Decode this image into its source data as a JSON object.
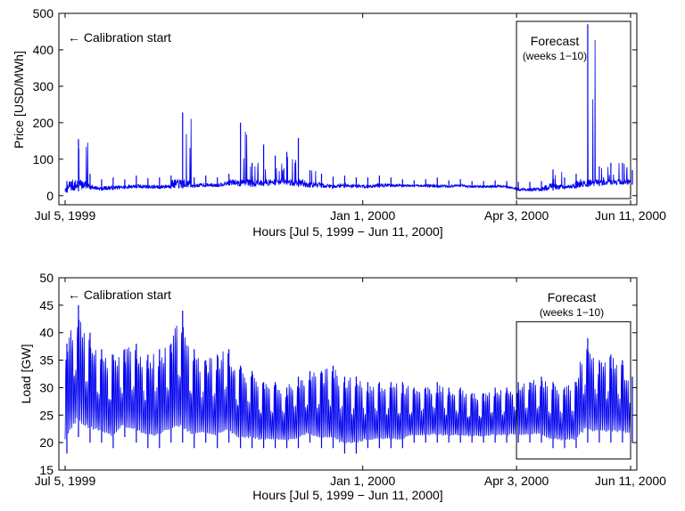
{
  "chart_data": [
    {
      "type": "line",
      "title": "",
      "xlabel": "Hours [Jul 5, 1999 − Jun 11, 2000]",
      "ylabel": "Price [USD/MWh]",
      "ylim": [
        -25,
        500
      ],
      "yticks": [
        0,
        100,
        200,
        300,
        400,
        500
      ],
      "xticks": [
        {
          "x": "1999-07-05",
          "label": "Jul 5, 1999"
        },
        {
          "x": "2000-01-01",
          "label": "Jan 1, 2000"
        },
        {
          "x": "2000-04-03",
          "label": "Apr 3, 2000"
        },
        {
          "x": "2000-06-11",
          "label": "Jun 11, 2000"
        }
      ],
      "xlim": [
        "1999-07-05",
        "2000-06-11"
      ],
      "color": "#0000ee",
      "series": [
        {
          "name": "",
          "x": [
            "1999-07-05",
            "1999-07-12",
            "1999-07-19",
            "1999-07-26",
            "1999-08-02",
            "1999-08-09",
            "1999-08-16",
            "1999-08-23",
            "1999-08-30",
            "1999-09-06",
            "1999-09-13",
            "1999-09-20",
            "1999-09-27",
            "1999-10-04",
            "1999-10-11",
            "1999-10-18",
            "1999-10-25",
            "1999-11-01",
            "1999-11-08",
            "1999-11-15",
            "1999-11-22",
            "1999-11-29",
            "1999-12-06",
            "1999-12-13",
            "1999-12-20",
            "1999-12-27",
            "2000-01-03",
            "2000-01-10",
            "2000-01-17",
            "2000-01-24",
            "2000-01-31",
            "2000-02-07",
            "2000-02-14",
            "2000-02-21",
            "2000-02-28",
            "2000-03-06",
            "2000-03-13",
            "2000-03-20",
            "2000-03-27",
            "2000-04-03",
            "2000-04-10",
            "2000-04-17",
            "2000-04-24",
            "2000-05-01",
            "2000-05-08",
            "2000-05-15",
            "2000-05-22",
            "2000-05-29",
            "2000-06-05",
            "2000-06-11"
          ],
          "low": [
            8,
            12,
            18,
            14,
            16,
            18,
            20,
            20,
            18,
            20,
            20,
            22,
            24,
            24,
            28,
            26,
            24,
            26,
            28,
            30,
            24,
            22,
            22,
            20,
            22,
            22,
            20,
            22,
            24,
            24,
            24,
            24,
            22,
            22,
            24,
            22,
            22,
            22,
            22,
            14,
            12,
            12,
            14,
            18,
            20,
            24,
            26,
            30,
            30,
            30
          ],
          "high": [
            40,
            155,
            60,
            45,
            50,
            45,
            55,
            48,
            50,
            55,
            228,
            50,
            55,
            50,
            60,
            200,
            90,
            140,
            110,
            120,
            158,
            70,
            60,
            52,
            55,
            50,
            50,
            55,
            50,
            45,
            42,
            45,
            50,
            42,
            45,
            40,
            40,
            42,
            40,
            38,
            38,
            40,
            72,
            50,
            60,
            470,
            80,
            90,
            90,
            70
          ]
        }
      ],
      "annotations": [
        {
          "text": "← Calibration start"
        },
        {
          "text": "Forecast",
          "subtext": "(weeks 1−10)",
          "x_range": [
            "2000-04-03",
            "2000-06-11"
          ],
          "y_range": [
            -8,
            478
          ]
        }
      ]
    },
    {
      "type": "line",
      "title": "",
      "xlabel": "Hours [Jul 5, 1999 − Jun 11, 2000]",
      "ylabel": "Load [GW]",
      "ylim": [
        15,
        50
      ],
      "yticks": [
        15,
        20,
        25,
        30,
        35,
        40,
        45,
        50
      ],
      "xticks": [
        {
          "x": "1999-07-05",
          "label": "Jul 5, 1999"
        },
        {
          "x": "2000-01-01",
          "label": "Jan 1, 2000"
        },
        {
          "x": "2000-04-03",
          "label": "Apr 3, 2000"
        },
        {
          "x": "2000-06-11",
          "label": "Jun 11, 2000"
        }
      ],
      "xlim": [
        "1999-07-05",
        "2000-06-11"
      ],
      "color": "#0000ee",
      "series": [
        {
          "name": "",
          "x": [
            "1999-07-05",
            "1999-07-12",
            "1999-07-19",
            "1999-07-26",
            "1999-08-02",
            "1999-08-09",
            "1999-08-16",
            "1999-08-23",
            "1999-08-30",
            "1999-09-06",
            "1999-09-13",
            "1999-09-20",
            "1999-09-27",
            "1999-10-04",
            "1999-10-11",
            "1999-10-18",
            "1999-10-25",
            "1999-11-01",
            "1999-11-08",
            "1999-11-15",
            "1999-11-22",
            "1999-11-29",
            "1999-12-06",
            "1999-12-13",
            "1999-12-20",
            "1999-12-27",
            "2000-01-03",
            "2000-01-10",
            "2000-01-17",
            "2000-01-24",
            "2000-01-31",
            "2000-02-07",
            "2000-02-14",
            "2000-02-21",
            "2000-02-28",
            "2000-03-06",
            "2000-03-13",
            "2000-03-20",
            "2000-03-27",
            "2000-04-03",
            "2000-04-10",
            "2000-04-17",
            "2000-04-24",
            "2000-05-01",
            "2000-05-08",
            "2000-05-15",
            "2000-05-22",
            "2000-05-29",
            "2000-06-05",
            "2000-06-11"
          ],
          "low": [
            18,
            21,
            20,
            20,
            19,
            21,
            20,
            19,
            19,
            20,
            20,
            19,
            20,
            19,
            20,
            19,
            19,
            19,
            19,
            19,
            19,
            20,
            19,
            19,
            18,
            18,
            19,
            19,
            19,
            19,
            20,
            20,
            20,
            20,
            20,
            20,
            20,
            20,
            20,
            20,
            20,
            20,
            19,
            19,
            19,
            20,
            20,
            20,
            20,
            20
          ],
          "high": [
            38,
            45,
            40,
            37,
            36,
            37,
            38,
            36,
            37,
            38,
            44,
            37,
            35,
            36,
            37,
            34,
            33,
            31,
            31,
            30,
            32,
            33,
            33,
            34,
            32,
            32,
            31,
            31,
            31,
            31,
            30,
            30,
            31,
            30,
            30,
            29,
            29,
            30,
            30,
            31,
            31,
            32,
            31,
            30,
            31,
            39,
            35,
            36,
            35,
            32
          ]
        }
      ],
      "annotations": [
        {
          "text": "← Calibration start"
        },
        {
          "text": "Forecast",
          "subtext": "(weeks 1−10)",
          "x_range": [
            "2000-04-03",
            "2000-06-11"
          ],
          "y_range": [
            17,
            42
          ]
        }
      ]
    }
  ]
}
